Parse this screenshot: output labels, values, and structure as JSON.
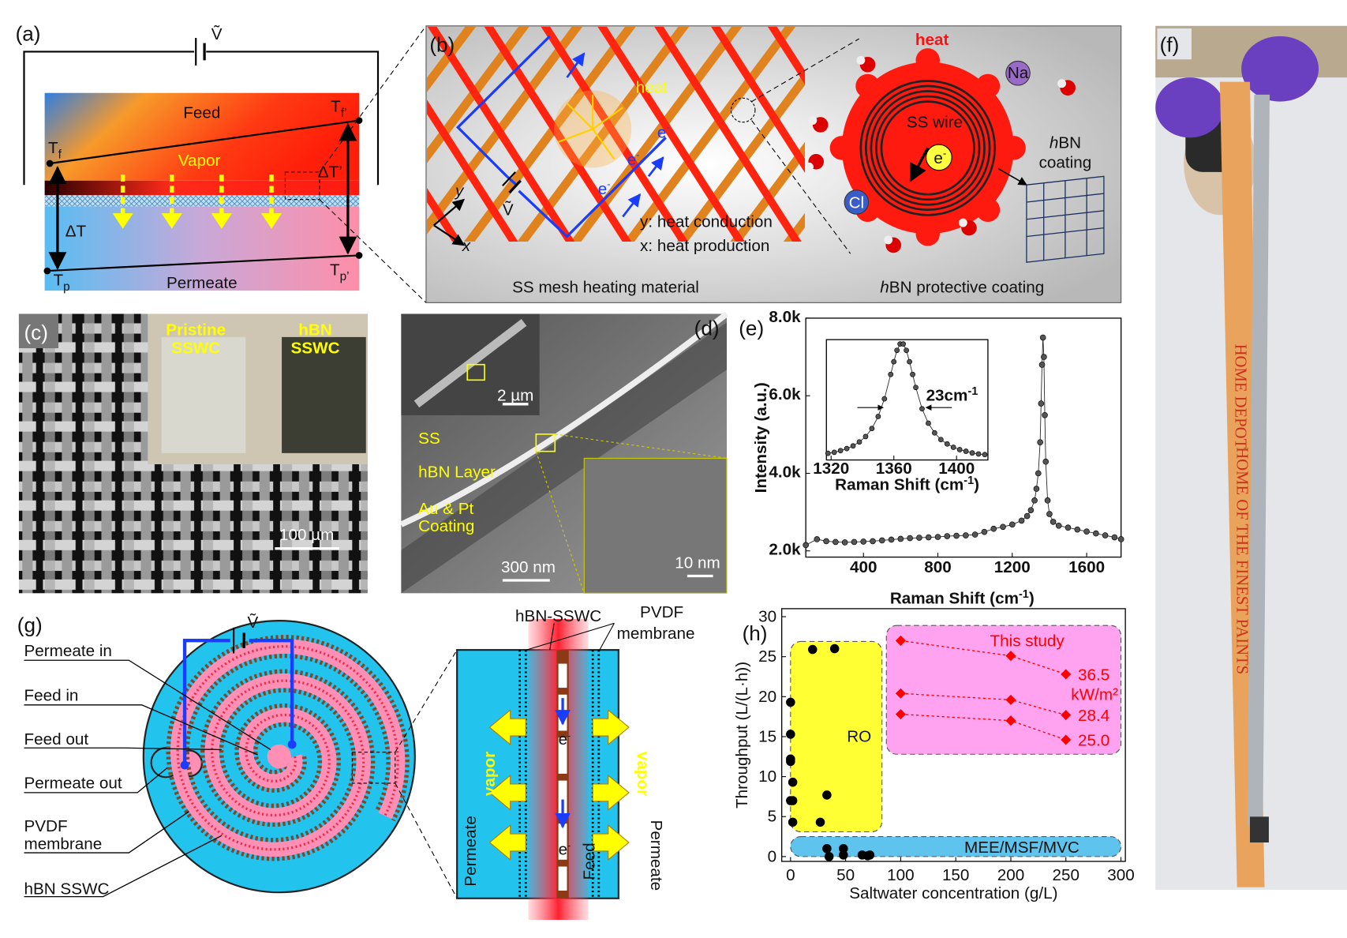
{
  "panels": {
    "a": {
      "label": "(a)",
      "voltage": "Ṽ",
      "feed": "Feed",
      "vapor": "Vapor",
      "permeate": "Permeate",
      "t_f": {
        "base": "T",
        "sub": "f"
      },
      "t_f_prime": {
        "base": "T",
        "sub": "f’"
      },
      "delta_t_prime": "ΔT’",
      "delta_t": "ΔT",
      "t_p": {
        "base": "T",
        "sub": "p"
      },
      "t_p_prime": {
        "base": "T",
        "sub": "p’"
      }
    },
    "b": {
      "label": "(b)",
      "mesh_heat": "heat",
      "electrons": [
        {
          "base": "e",
          "sup": "-"
        },
        {
          "base": "e",
          "sup": "-"
        },
        {
          "base": "e",
          "sup": "-"
        }
      ],
      "voltage": "Ṽ",
      "axis_y": "y",
      "axis_x": "x",
      "y_caption": "y: heat conduction",
      "x_caption": "x: heat production",
      "mesh_title": "SS mesh heating material",
      "wire_heat": "heat",
      "sodium": "Na",
      "wire": "SS wire",
      "wire_electron": {
        "base": "e",
        "sup": "-"
      },
      "chloride": "Cl",
      "coating": [
        {
          "italic": "h",
          "rest": "BN"
        },
        "coating"
      ],
      "coating_title": {
        "italic": "h",
        "rest": "BN protective coating"
      }
    },
    "c": {
      "label": "(c)",
      "pristine": [
        "Pristine",
        "SSWC"
      ],
      "hbn": [
        "hBN",
        "SSWC"
      ],
      "scale": "100 µm"
    },
    "d": {
      "label": "(d)",
      "inset_scale": "2 µm",
      "ss": "SS",
      "layer": "hBN Layer",
      "coating": [
        "Au & Pt",
        "Coating"
      ],
      "scale": "300 nm",
      "hr_scale": "10 nm"
    },
    "e": {
      "label": "(e)"
    },
    "f": {
      "label": "(f)",
      "ruler": [
        "HOME DEPOT",
        "HOME OF THE FINEST PAINTS"
      ]
    },
    "g": {
      "label": "(g)",
      "voltage": "Ṽ",
      "permeate_in": "Permeate in",
      "feed_in": "Feed in",
      "feed_out": "Feed out",
      "permeate_out": "Permeate out",
      "pvdf": [
        "PVDF",
        "membrane"
      ],
      "sswc": "hBN SSWC",
      "detail_sswc": "hBN-SSWC",
      "detail_membrane": [
        "PVDF",
        "membrane"
      ],
      "vapor": [
        "vapor",
        "vapor"
      ],
      "permeate": [
        "Permeate",
        "Permeate"
      ],
      "feed": "Feed",
      "electrons": [
        {
          "base": "e",
          "sup": "-"
        },
        {
          "base": "e",
          "sup": "-"
        }
      ]
    },
    "h": {
      "label": "(h)"
    }
  },
  "chart_data": [
    {
      "type": "line",
      "line": "solid",
      "marker": "circle",
      "color": "#222222",
      "x_label": {
        "text": "Raman Shift (cm",
        "sup": "-1",
        "tail": ")"
      },
      "y_label": "Intensity (a.u.)",
      "x": [
        90,
        150,
        200,
        250,
        300,
        350,
        400,
        450,
        500,
        550,
        600,
        650,
        700,
        750,
        800,
        850,
        900,
        950,
        1000,
        1050,
        1100,
        1150,
        1200,
        1250,
        1280,
        1300,
        1320,
        1330,
        1340,
        1350,
        1355,
        1360,
        1365,
        1370,
        1375,
        1380,
        1390,
        1400,
        1420,
        1450,
        1500,
        1550,
        1600,
        1650,
        1700,
        1750,
        1785
      ],
      "values": [
        2150,
        2300,
        2250,
        2230,
        2220,
        2230,
        2240,
        2250,
        2270,
        2290,
        2310,
        2330,
        2340,
        2350,
        2360,
        2380,
        2390,
        2400,
        2420,
        2490,
        2570,
        2620,
        2680,
        2780,
        2900,
        3050,
        3300,
        3600,
        4000,
        4800,
        5800,
        6800,
        7500,
        7000,
        5500,
        4300,
        3300,
        2950,
        2750,
        2650,
        2600,
        2550,
        2500,
        2450,
        2400,
        2350,
        2300
      ],
      "xlim": [
        90,
        1785
      ],
      "ylim": [
        1840,
        8000
      ],
      "xticks": [
        400,
        800,
        1200,
        1600
      ],
      "yticks": [
        {
          "value": 2000,
          "label": "2.0k"
        },
        {
          "value": 4000,
          "label": "4.0k"
        },
        {
          "value": 6000,
          "label": "6.0k"
        },
        {
          "value": 8000,
          "label": "8.0k"
        }
      ]
    },
    {
      "type": "line",
      "line": "solid",
      "marker": "circle",
      "color": "#222222",
      "x_label": {
        "text": "Raman Shift (cm",
        "sup": "-1",
        "tail": ")"
      },
      "x": [
        1318,
        1322,
        1326,
        1330,
        1334,
        1338,
        1342,
        1346,
        1350,
        1354,
        1358,
        1360,
        1362,
        1364,
        1366,
        1368,
        1370,
        1372,
        1374,
        1378,
        1382,
        1386,
        1390,
        1394,
        1398,
        1402,
        1406,
        1410,
        1414,
        1418
      ],
      "values": [
        4200,
        4230,
        4280,
        4340,
        4420,
        4540,
        4700,
        4940,
        5300,
        5830,
        6560,
        6940,
        7280,
        7470,
        7470,
        7280,
        6940,
        6560,
        6170,
        5530,
        5100,
        4810,
        4610,
        4480,
        4380,
        4310,
        4260,
        4210,
        4180,
        4160
      ],
      "xlim": [
        1317,
        1420
      ],
      "ylim": [
        4000,
        7600
      ],
      "xticks": [
        1320,
        1360,
        1400
      ],
      "annotation": {
        "text": "23cm",
        "sup": "-1"
      }
    },
    {
      "type": "scatter",
      "x_label": "Saltwater concentration (g/L)",
      "y_label": "Throughput (L/(L·h))",
      "xlim": [
        -8,
        304
      ],
      "ylim": [
        -0.6,
        31
      ],
      "xticks": [
        0,
        50,
        100,
        150,
        200,
        250,
        300
      ],
      "yticks": [
        0,
        5,
        10,
        15,
        20,
        25,
        30
      ],
      "regions": [
        {
          "label": "RO",
          "color": "#ffff33",
          "xrange": [
            0,
            83
          ],
          "yrange": [
            3.1,
            26.9
          ]
        },
        {
          "label": "MEE/MSF/MVC",
          "color": "#5ec4ee",
          "xrange": [
            0,
            300
          ],
          "yrange": [
            0,
            2.5
          ]
        },
        {
          "label": "This study",
          "color": "#ffa3f0",
          "xrange": [
            87,
            300
          ],
          "yrange": [
            12.8,
            28.9
          ]
        }
      ],
      "series": [
        {
          "color": "#000000",
          "marker": "circle",
          "x": [
            0,
            0,
            0,
            0,
            2,
            0,
            2,
            2,
            20,
            40,
            27,
            33,
            33,
            35,
            48,
            48,
            65,
            70,
            72
          ],
          "values": [
            19.3,
            15.3,
            12.2,
            11.9,
            9.3,
            7.0,
            7.0,
            4.3,
            25.9,
            26.0,
            4.3,
            7.7,
            1.0,
            0,
            1.0,
            0.2,
            0.2,
            0.1,
            0.2
          ]
        },
        {
          "name": "36.5",
          "color": "#ff0000",
          "marker": "diamond",
          "line": "dashed",
          "x": [
            100,
            200,
            250
          ],
          "values": [
            27.0,
            25.1,
            22.8
          ]
        },
        {
          "name": "28.4",
          "color": "#ff0000",
          "marker": "diamond",
          "line": "dashed",
          "x": [
            100,
            200,
            250
          ],
          "values": [
            20.4,
            19.6,
            17.7
          ]
        },
        {
          "name": "25.0",
          "color": "#ff0000",
          "marker": "diamond",
          "line": "dashed",
          "x": [
            100,
            200,
            250
          ],
          "values": [
            17.8,
            17.0,
            14.6
          ]
        }
      ],
      "unit_label": "kW/m²"
    }
  ]
}
